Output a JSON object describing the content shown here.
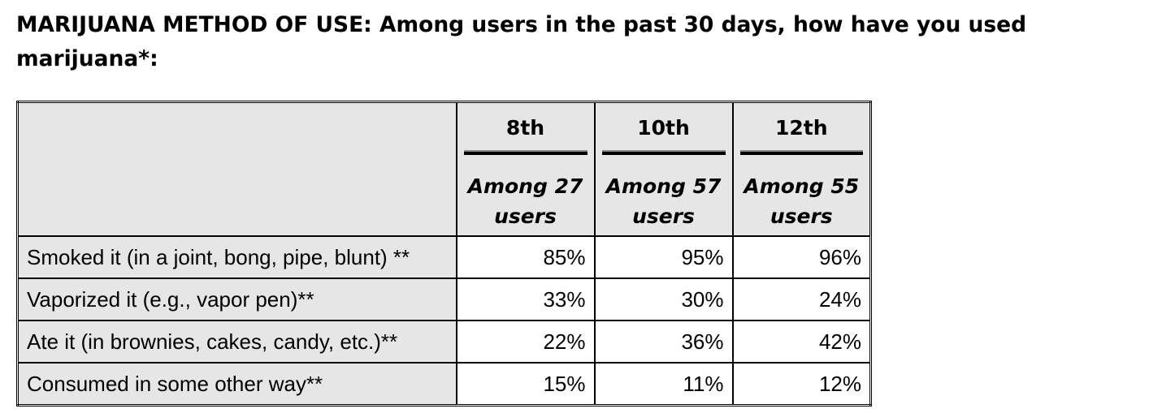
{
  "title": "MARIJUANA METHOD OF USE: Among users in the past 30 days, how have you used marijuana*:",
  "grades": [
    {
      "name": "8th",
      "users": "Among 27 users"
    },
    {
      "name": "10th",
      "users": "Among 57 users"
    },
    {
      "name": "12th",
      "users": "Among 55 users"
    }
  ],
  "rows": [
    {
      "label": "Smoked it (in a joint, bong, pipe, blunt) **",
      "values": [
        "85%",
        "95%",
        "96%"
      ]
    },
    {
      "label": "Vaporized it (e.g., vapor pen)**",
      "values": [
        "33%",
        "30%",
        "24%"
      ]
    },
    {
      "label": "Ate it (in brownies, cakes, candy, etc.)**",
      "values": [
        "22%",
        "36%",
        "42%"
      ]
    },
    {
      "label": "Consumed in some other way**",
      "values": [
        "15%",
        "11%",
        "12%"
      ]
    }
  ]
}
